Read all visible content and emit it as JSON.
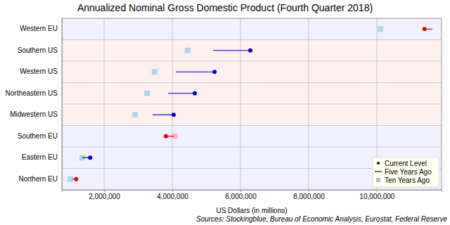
{
  "chart_data": {
    "type": "dumbbell",
    "orientation": "horizontal",
    "title": "Annualized Nominal Gross Domestic Product (Fourth Quarter 2018)",
    "x_label": "US Dollars (in millions)",
    "source": "Sources: Stockingblue, Bureau of Economic Analysis, Eurostat, Federal Reserve",
    "categories": [
      "Western EU",
      "Southern US",
      "Western US",
      "Northeastern US",
      "Midwestern US",
      "Southern EU",
      "Eastern EU",
      "Northern EU"
    ],
    "series": [
      {
        "name": "Current Level",
        "type": "scatter",
        "marker": "circle",
        "values": [
          11400000,
          6290000,
          5240000,
          4660000,
          4040000,
          3810000,
          1590000,
          1180000
        ],
        "colors": [
          "#dd0000",
          "#0000cc",
          "#0000cc",
          "#0000cc",
          "#0000cc",
          "#dd0000",
          "#0000cc",
          "#dd0000"
        ]
      },
      {
        "name": "Five Years Ago",
        "type": "line",
        "line_style": "solid",
        "values": [
          11630000,
          5200000,
          4100000,
          3880000,
          3420000,
          4050000,
          1360000,
          1070000
        ],
        "colors": [
          "#dd0000",
          "#0000cc",
          "#0000cc",
          "#0000cc",
          "#0000cc",
          "#dd0000",
          "#0000cc",
          "#dd0000"
        ]
      },
      {
        "name": "Ten Years Ago",
        "type": "scatter",
        "marker": "square",
        "values": [
          10100000,
          4450000,
          3480000,
          3260000,
          2910000,
          4080000,
          1360000,
          1010000
        ],
        "colors": [
          "#add8e6",
          "#add8e6",
          "#add8e6",
          "#add8e6",
          "#add8e6",
          "#ffb6c1",
          "#add8e6",
          "#add8e6"
        ]
      }
    ],
    "xlim": [
      760000,
      11900000
    ],
    "xticks": [
      {
        "value": 2000000,
        "label": "2,000,000"
      },
      {
        "value": 4000000,
        "label": "4,000,000"
      },
      {
        "value": 6000000,
        "label": "6,000,000"
      },
      {
        "value": 8000000,
        "label": "8,000,000"
      },
      {
        "value": 10000000,
        "label": "10,000,000"
      }
    ],
    "grid": true,
    "legend": "bottom-right"
  }
}
